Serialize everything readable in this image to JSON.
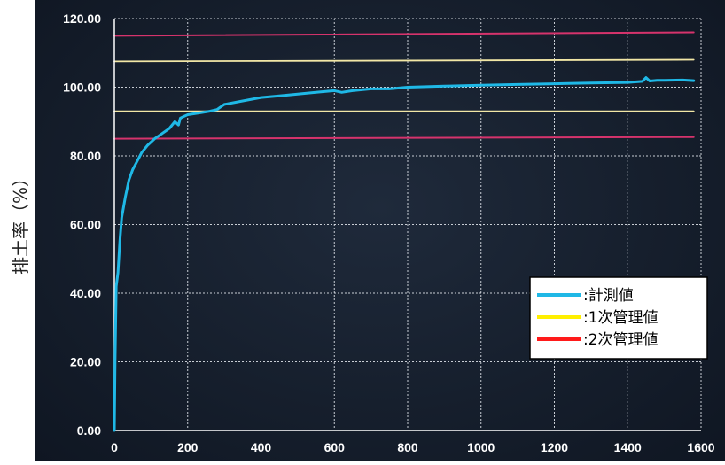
{
  "chart_data": {
    "type": "line",
    "ylabel": "排土率（%）",
    "xlabel": "",
    "xlim": [
      0,
      1600
    ],
    "ylim": [
      0,
      120
    ],
    "x_ticks": [
      "0",
      "200",
      "400",
      "600",
      "800",
      "1000",
      "1200",
      "1400",
      "1600"
    ],
    "y_ticks": [
      "0.00",
      "20.00",
      "40.00",
      "60.00",
      "80.00",
      "100.00",
      "120.00"
    ],
    "grid": true,
    "legend_position": "lower-right",
    "colors": {
      "measured": "#1fb8e6",
      "primary_limit": "#f2e7a6",
      "secondary_limit": "#d6336c",
      "grid": "#e8ecf2",
      "background": "#172131"
    },
    "series": [
      {
        "name": ":計測値",
        "x": [
          0,
          2,
          5,
          10,
          15,
          20,
          30,
          40,
          50,
          60,
          75,
          90,
          110,
          130,
          150,
          165,
          175,
          180,
          190,
          200,
          230,
          260,
          280,
          300,
          350,
          400,
          450,
          500,
          550,
          600,
          620,
          650,
          700,
          750,
          800,
          900,
          1000,
          1100,
          1200,
          1300,
          1400,
          1440,
          1450,
          1460,
          1480,
          1500,
          1550,
          1580
        ],
        "values": [
          0,
          20,
          42,
          46,
          55,
          62,
          68,
          73,
          76,
          78,
          81,
          83,
          85,
          86.5,
          88,
          90,
          89,
          91,
          91.5,
          92,
          92.5,
          93,
          93.5,
          95,
          96,
          97,
          97.5,
          98,
          98.5,
          99,
          98.5,
          99,
          99.5,
          99.5,
          100,
          100.3,
          100.6,
          100.8,
          101,
          101.2,
          101.4,
          101.7,
          102.8,
          101.8,
          102,
          102,
          102.1,
          101.9
        ]
      },
      {
        "name": ":1次管理値",
        "x": [
          0,
          1580
        ],
        "values": [
          93,
          93
        ]
      },
      {
        "name": ":1次管理値",
        "x": [
          0,
          1580
        ],
        "values": [
          107.5,
          108
        ]
      },
      {
        "name": ":2次管理値",
        "x": [
          0,
          1580
        ],
        "values": [
          85,
          85.5
        ]
      },
      {
        "name": ":2次管理値",
        "x": [
          0,
          1580
        ],
        "values": [
          115,
          116
        ]
      }
    ],
    "legend": [
      {
        "label": ":計測値",
        "color": "#1fb8e6"
      },
      {
        "label": ":1次管理値",
        "color": "#ffef00"
      },
      {
        "label": ":2次管理値",
        "color": "#ff1a1a"
      }
    ]
  }
}
